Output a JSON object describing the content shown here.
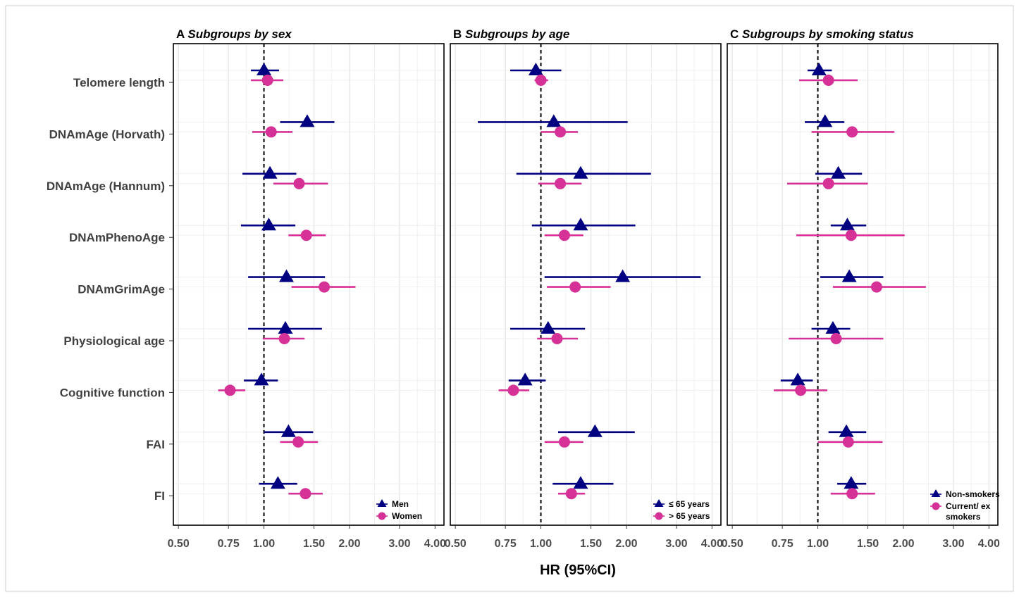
{
  "chart_data": {
    "type": "forest",
    "xlabel": "HR (95%CI)",
    "x_scale": "log",
    "xlim": [
      0.48,
      4.3
    ],
    "x_ticks": [
      0.5,
      0.75,
      1.0,
      1.5,
      2.0,
      3.0,
      4.0
    ],
    "x_tick_labels": [
      "0.50",
      "0.75",
      "1.00",
      "1.50",
      "2.00",
      "3.00",
      "4.00"
    ],
    "reference_line": 1.0,
    "grid": true,
    "rows": [
      "Telomere length",
      "DNAmAge (Horvath)",
      "DNAmAge (Hannum)",
      "DNAmPhenoAge",
      "DNAmGrimAge",
      "Physiological age",
      "Cognitive function",
      "FAI",
      "FI"
    ],
    "colors": {
      "series1": "#000080",
      "series2": "#d63196"
    },
    "panels": [
      {
        "letter": "A",
        "title": "Subgroups by sex",
        "legend_position": "bottom-right",
        "series": [
          {
            "name": "Men",
            "marker": "triangle",
            "hr": [
              1.0,
              1.42,
              1.05,
              1.04,
              1.2,
              1.19,
              0.98,
              1.22,
              1.12
            ],
            "lower": [
              0.9,
              1.14,
              0.84,
              0.83,
              0.88,
              0.88,
              0.85,
              1.0,
              0.96
            ],
            "upper": [
              1.13,
              1.77,
              1.3,
              1.29,
              1.64,
              1.6,
              1.12,
              1.49,
              1.31
            ]
          },
          {
            "name": "Women",
            "marker": "circle",
            "hr": [
              1.03,
              1.06,
              1.33,
              1.41,
              1.63,
              1.18,
              0.76,
              1.32,
              1.4
            ],
            "lower": [
              0.9,
              0.91,
              1.08,
              1.22,
              1.25,
              0.99,
              0.69,
              1.14,
              1.22
            ],
            "upper": [
              1.17,
              1.26,
              1.68,
              1.65,
              2.1,
              1.39,
              0.86,
              1.55,
              1.61
            ]
          }
        ]
      },
      {
        "letter": "B",
        "title": "Subgroups by age",
        "legend_position": "bottom-right",
        "series": [
          {
            "name": "≤ 65 years",
            "marker": "triangle",
            "hr": [
              0.96,
              1.11,
              1.38,
              1.38,
              1.94,
              1.06,
              0.88,
              1.55,
              1.38
            ],
            "lower": [
              0.78,
              0.6,
              0.82,
              0.93,
              1.03,
              0.78,
              0.77,
              1.15,
              1.1
            ],
            "upper": [
              1.18,
              2.02,
              2.44,
              2.15,
              3.65,
              1.43,
              1.04,
              2.14,
              1.8
            ]
          },
          {
            "name": "> 65 years",
            "marker": "circle",
            "hr": [
              1.0,
              1.17,
              1.17,
              1.21,
              1.32,
              1.14,
              0.8,
              1.21,
              1.28
            ],
            "lower": [
              0.95,
              1.0,
              0.98,
              1.03,
              1.05,
              0.97,
              0.71,
              1.03,
              1.15
            ],
            "upper": [
              1.06,
              1.35,
              1.39,
              1.41,
              1.76,
              1.35,
              0.91,
              1.41,
              1.43
            ]
          }
        ]
      },
      {
        "letter": "C",
        "title": "Subgroups by smoking status",
        "legend_position": "bottom-right",
        "series": [
          {
            "name": "Non-smokers",
            "marker": "triangle",
            "hr": [
              1.01,
              1.06,
              1.18,
              1.27,
              1.29,
              1.13,
              0.85,
              1.26,
              1.31
            ],
            "lower": [
              0.92,
              0.9,
              0.98,
              1.11,
              1.02,
              0.95,
              0.74,
              1.09,
              1.17
            ],
            "upper": [
              1.12,
              1.24,
              1.43,
              1.48,
              1.7,
              1.3,
              0.96,
              1.48,
              1.48
            ]
          },
          {
            "name": "Current/ ex smokers",
            "marker": "circle",
            "hr": [
              1.09,
              1.32,
              1.09,
              1.31,
              1.61,
              1.16,
              0.87,
              1.28,
              1.32
            ],
            "lower": [
              0.86,
              0.95,
              0.78,
              0.84,
              1.13,
              0.79,
              0.7,
              1.0,
              1.11
            ],
            "upper": [
              1.38,
              1.86,
              1.5,
              2.02,
              2.4,
              1.7,
              1.08,
              1.69,
              1.59
            ]
          }
        ]
      }
    ]
  }
}
